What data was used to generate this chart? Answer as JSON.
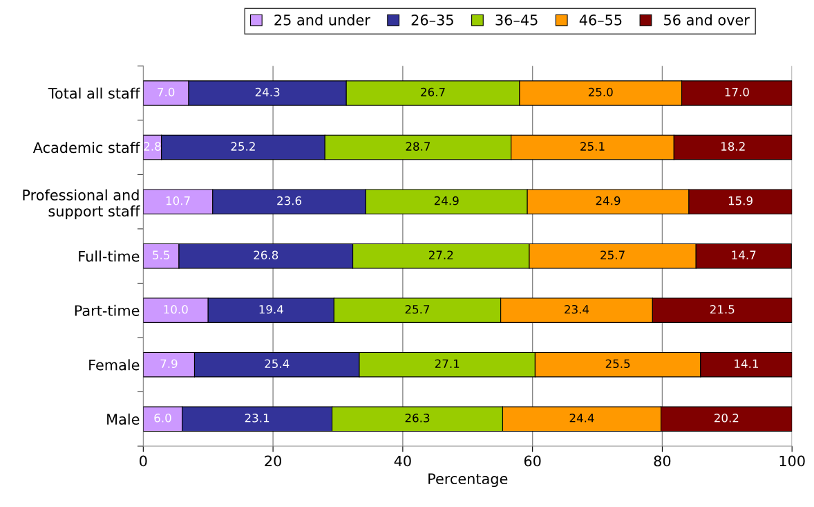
{
  "chart_data": {
    "type": "bar",
    "orientation": "horizontal",
    "stacked": true,
    "xlabel": "Percentage",
    "categories": [
      "Total all staff",
      "Academic staff",
      "Professional and\nsupport staff",
      "Full-time",
      "Part-time",
      "Female",
      "Male"
    ],
    "series": [
      {
        "name": "25 and under",
        "color": "#cc99ff",
        "values": [
          7.0,
          2.8,
          10.7,
          5.5,
          10.0,
          7.9,
          6.0
        ],
        "value_labels": [
          "7.0",
          "2.8",
          "10.7",
          "5.5",
          "10.0",
          "7.9",
          "6.0"
        ]
      },
      {
        "name": "26–35",
        "color": "#333399",
        "values": [
          24.3,
          25.2,
          23.6,
          26.8,
          19.4,
          25.4,
          23.1
        ],
        "value_labels": [
          "24.3",
          "25.2",
          "23.6",
          "26.8",
          "19.4",
          "25.4",
          "23.1"
        ]
      },
      {
        "name": "36–45",
        "color": "#99cc00",
        "values": [
          26.7,
          28.7,
          24.9,
          27.2,
          25.7,
          27.1,
          26.3
        ],
        "value_labels": [
          "26.7",
          "28.7",
          "24.9",
          "27.2",
          "25.7",
          "27.1",
          "26.3"
        ]
      },
      {
        "name": "46–55",
        "color": "#ff9900",
        "values": [
          25.0,
          25.1,
          24.9,
          25.7,
          23.4,
          25.5,
          24.4
        ],
        "value_labels": [
          "25.0",
          "25.1",
          "24.9",
          "25.7",
          "23.4",
          "25.5",
          "24.4"
        ]
      },
      {
        "name": "56 and over",
        "color": "#800000",
        "values": [
          17.0,
          18.2,
          15.9,
          14.7,
          21.5,
          14.1,
          20.2
        ],
        "value_labels": [
          "17.0",
          "18.2",
          "15.9",
          "14.7",
          "21.5",
          "14.1",
          "20.2"
        ]
      }
    ],
    "xlim": [
      0,
      100
    ],
    "xticks": [
      0,
      20,
      40,
      60,
      80,
      100
    ],
    "grid": "x",
    "legend": "top"
  }
}
